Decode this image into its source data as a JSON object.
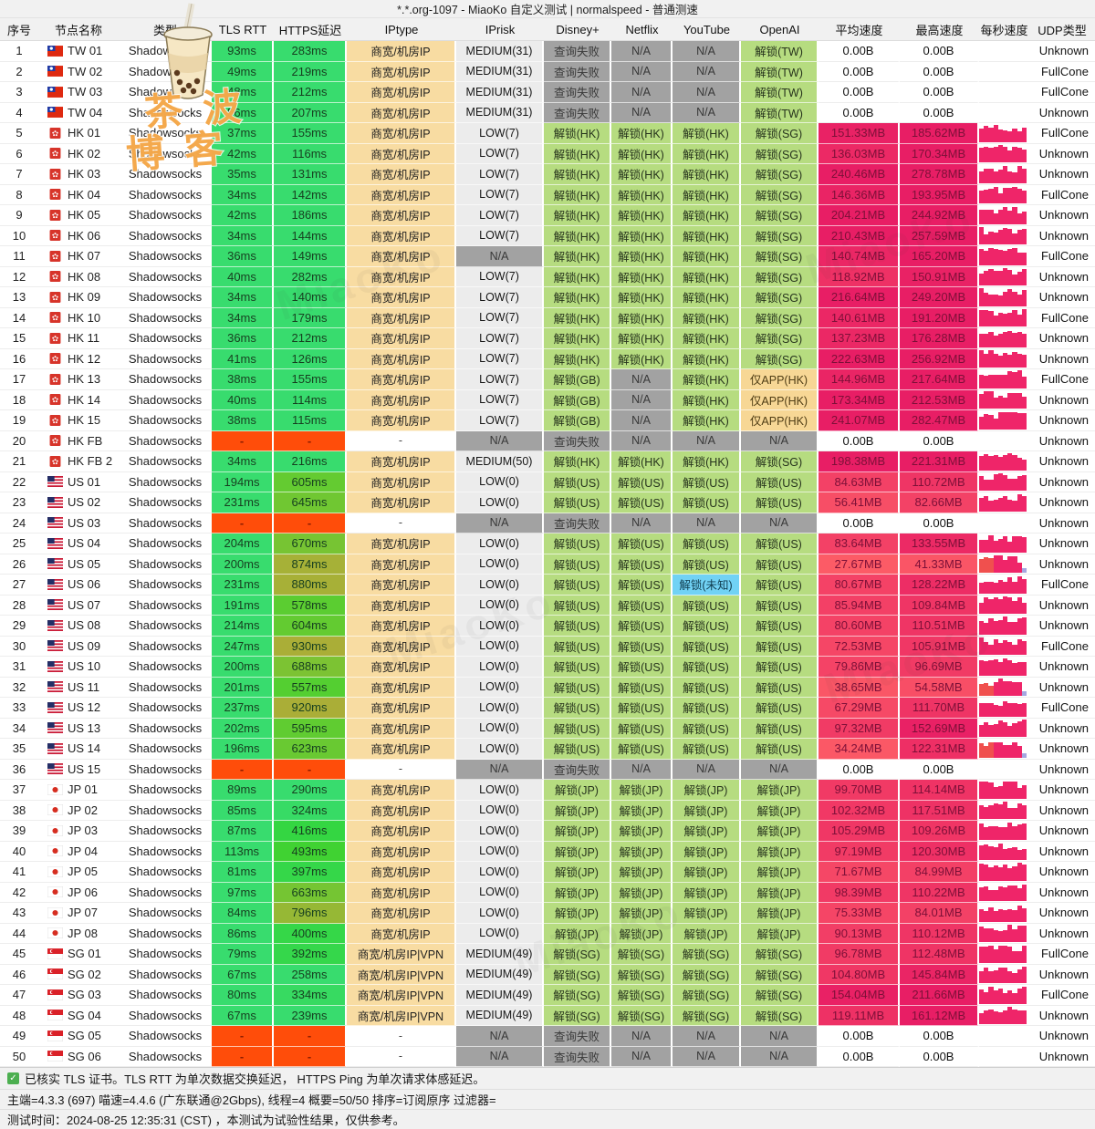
{
  "title": "*.*.org-1097 - MiaoKo 自定义测试 | normalspeed - 普通测速",
  "columns": [
    "序号",
    "节点名称",
    "类型",
    "TLS RTT",
    "HTTPS延迟",
    "IPtype",
    "IPrisk",
    "Disney+",
    "Netflix",
    "YouTube",
    "OpenAI",
    "平均速度",
    "最高速度",
    "每秒速度",
    "UDP类型"
  ],
  "row_fields": [
    "idx",
    "flag",
    "name",
    "type",
    "tls",
    "https",
    "iptype",
    "iprisk",
    "disney",
    "netflix",
    "youtube",
    "openai",
    "avg",
    "max",
    "udp"
  ],
  "rows": [
    [
      1,
      "tw",
      "TW 01",
      "Shadowsocks",
      "93ms",
      "283ms",
      "商宽/机房IP",
      "MEDIUM(31)",
      "查询失败",
      "N/A",
      "N/A",
      "解锁(TW)",
      "0.00B",
      "0.00B",
      "Unknown"
    ],
    [
      2,
      "tw",
      "TW 02",
      "Shadowsocks",
      "49ms",
      "219ms",
      "商宽/机房IP",
      "MEDIUM(31)",
      "查询失败",
      "N/A",
      "N/A",
      "解锁(TW)",
      "0.00B",
      "0.00B",
      "FullCone"
    ],
    [
      3,
      "tw",
      "TW 03",
      "Shadowsocks",
      "48ms",
      "212ms",
      "商宽/机房IP",
      "MEDIUM(31)",
      "查询失败",
      "N/A",
      "N/A",
      "解锁(TW)",
      "0.00B",
      "0.00B",
      "FullCone"
    ],
    [
      4,
      "tw",
      "TW 04",
      "Shadowsocks",
      "56ms",
      "207ms",
      "商宽/机房IP",
      "MEDIUM(31)",
      "查询失败",
      "N/A",
      "N/A",
      "解锁(TW)",
      "0.00B",
      "0.00B",
      "Unknown"
    ],
    [
      5,
      "hk",
      "HK 01",
      "Shadowsocks",
      "37ms",
      "155ms",
      "商宽/机房IP",
      "LOW(7)",
      "解锁(HK)",
      "解锁(HK)",
      "解锁(HK)",
      "解锁(SG)",
      "151.33MB",
      "185.62MB",
      "FullCone"
    ],
    [
      6,
      "hk",
      "HK 02",
      "Shadowsocks",
      "42ms",
      "116ms",
      "商宽/机房IP",
      "LOW(7)",
      "解锁(HK)",
      "解锁(HK)",
      "解锁(HK)",
      "解锁(SG)",
      "136.03MB",
      "170.34MB",
      "Unknown"
    ],
    [
      7,
      "hk",
      "HK 03",
      "Shadowsocks",
      "35ms",
      "131ms",
      "商宽/机房IP",
      "LOW(7)",
      "解锁(HK)",
      "解锁(HK)",
      "解锁(HK)",
      "解锁(SG)",
      "240.46MB",
      "278.78MB",
      "Unknown"
    ],
    [
      8,
      "hk",
      "HK 04",
      "Shadowsocks",
      "34ms",
      "142ms",
      "商宽/机房IP",
      "LOW(7)",
      "解锁(HK)",
      "解锁(HK)",
      "解锁(HK)",
      "解锁(SG)",
      "146.36MB",
      "193.95MB",
      "FullCone"
    ],
    [
      9,
      "hk",
      "HK 05",
      "Shadowsocks",
      "42ms",
      "186ms",
      "商宽/机房IP",
      "LOW(7)",
      "解锁(HK)",
      "解锁(HK)",
      "解锁(HK)",
      "解锁(SG)",
      "204.21MB",
      "244.92MB",
      "Unknown"
    ],
    [
      10,
      "hk",
      "HK 06",
      "Shadowsocks",
      "34ms",
      "144ms",
      "商宽/机房IP",
      "LOW(7)",
      "解锁(HK)",
      "解锁(HK)",
      "解锁(HK)",
      "解锁(SG)",
      "210.43MB",
      "257.59MB",
      "Unknown"
    ],
    [
      11,
      "hk",
      "HK 07",
      "Shadowsocks",
      "36ms",
      "149ms",
      "商宽/机房IP",
      "N/A",
      "解锁(HK)",
      "解锁(HK)",
      "解锁(HK)",
      "解锁(SG)",
      "140.74MB",
      "165.20MB",
      "FullCone"
    ],
    [
      12,
      "hk",
      "HK 08",
      "Shadowsocks",
      "40ms",
      "282ms",
      "商宽/机房IP",
      "LOW(7)",
      "解锁(HK)",
      "解锁(HK)",
      "解锁(HK)",
      "解锁(SG)",
      "118.92MB",
      "150.91MB",
      "Unknown"
    ],
    [
      13,
      "hk",
      "HK 09",
      "Shadowsocks",
      "34ms",
      "140ms",
      "商宽/机房IP",
      "LOW(7)",
      "解锁(HK)",
      "解锁(HK)",
      "解锁(HK)",
      "解锁(SG)",
      "216.64MB",
      "249.20MB",
      "Unknown"
    ],
    [
      14,
      "hk",
      "HK 10",
      "Shadowsocks",
      "34ms",
      "179ms",
      "商宽/机房IP",
      "LOW(7)",
      "解锁(HK)",
      "解锁(HK)",
      "解锁(HK)",
      "解锁(SG)",
      "140.61MB",
      "191.20MB",
      "FullCone"
    ],
    [
      15,
      "hk",
      "HK 11",
      "Shadowsocks",
      "36ms",
      "212ms",
      "商宽/机房IP",
      "LOW(7)",
      "解锁(HK)",
      "解锁(HK)",
      "解锁(HK)",
      "解锁(SG)",
      "137.23MB",
      "176.28MB",
      "Unknown"
    ],
    [
      16,
      "hk",
      "HK 12",
      "Shadowsocks",
      "41ms",
      "126ms",
      "商宽/机房IP",
      "LOW(7)",
      "解锁(HK)",
      "解锁(HK)",
      "解锁(HK)",
      "解锁(SG)",
      "222.63MB",
      "256.92MB",
      "Unknown"
    ],
    [
      17,
      "hk",
      "HK 13",
      "Shadowsocks",
      "38ms",
      "155ms",
      "商宽/机房IP",
      "LOW(7)",
      "解锁(GB)",
      "N/A",
      "解锁(HK)",
      "仅APP(HK)",
      "144.96MB",
      "217.64MB",
      "FullCone"
    ],
    [
      18,
      "hk",
      "HK 14",
      "Shadowsocks",
      "40ms",
      "114ms",
      "商宽/机房IP",
      "LOW(7)",
      "解锁(GB)",
      "N/A",
      "解锁(HK)",
      "仅APP(HK)",
      "173.34MB",
      "212.53MB",
      "Unknown"
    ],
    [
      19,
      "hk",
      "HK 15",
      "Shadowsocks",
      "38ms",
      "115ms",
      "商宽/机房IP",
      "LOW(7)",
      "解锁(GB)",
      "N/A",
      "解锁(HK)",
      "仅APP(HK)",
      "241.07MB",
      "282.47MB",
      "Unknown"
    ],
    [
      20,
      "hk",
      "HK FB",
      "Shadowsocks",
      "-",
      "-",
      "-",
      "N/A",
      "查询失败",
      "N/A",
      "N/A",
      "N/A",
      "0.00B",
      "0.00B",
      "Unknown"
    ],
    [
      21,
      "hk",
      "HK FB 2",
      "Shadowsocks",
      "34ms",
      "216ms",
      "商宽/机房IP",
      "MEDIUM(50)",
      "解锁(HK)",
      "解锁(HK)",
      "解锁(HK)",
      "解锁(SG)",
      "198.38MB",
      "221.31MB",
      "Unknown"
    ],
    [
      22,
      "us",
      "US 01",
      "Shadowsocks",
      "194ms",
      "605ms",
      "商宽/机房IP",
      "LOW(0)",
      "解锁(US)",
      "解锁(US)",
      "解锁(US)",
      "解锁(US)",
      "84.63MB",
      "110.72MB",
      "Unknown"
    ],
    [
      23,
      "us",
      "US 02",
      "Shadowsocks",
      "231ms",
      "645ms",
      "商宽/机房IP",
      "LOW(0)",
      "解锁(US)",
      "解锁(US)",
      "解锁(US)",
      "解锁(US)",
      "56.41MB",
      "82.66MB",
      "Unknown"
    ],
    [
      24,
      "us",
      "US 03",
      "Shadowsocks",
      "-",
      "-",
      "-",
      "N/A",
      "查询失败",
      "N/A",
      "N/A",
      "N/A",
      "0.00B",
      "0.00B",
      "Unknown"
    ],
    [
      25,
      "us",
      "US 04",
      "Shadowsocks",
      "204ms",
      "670ms",
      "商宽/机房IP",
      "LOW(0)",
      "解锁(US)",
      "解锁(US)",
      "解锁(US)",
      "解锁(US)",
      "83.64MB",
      "133.55MB",
      "Unknown"
    ],
    [
      26,
      "us",
      "US 05",
      "Shadowsocks",
      "200ms",
      "874ms",
      "商宽/机房IP",
      "LOW(0)",
      "解锁(US)",
      "解锁(US)",
      "解锁(US)",
      "解锁(US)",
      "27.67MB",
      "41.33MB",
      "Unknown"
    ],
    [
      27,
      "us",
      "US 06",
      "Shadowsocks",
      "231ms",
      "880ms",
      "商宽/机房IP",
      "LOW(0)",
      "解锁(US)",
      "解锁(US)",
      "解锁(未知)",
      "解锁(US)",
      "80.67MB",
      "128.22MB",
      "FullCone"
    ],
    [
      28,
      "us",
      "US 07",
      "Shadowsocks",
      "191ms",
      "578ms",
      "商宽/机房IP",
      "LOW(0)",
      "解锁(US)",
      "解锁(US)",
      "解锁(US)",
      "解锁(US)",
      "85.94MB",
      "109.84MB",
      "Unknown"
    ],
    [
      29,
      "us",
      "US 08",
      "Shadowsocks",
      "214ms",
      "604ms",
      "商宽/机房IP",
      "LOW(0)",
      "解锁(US)",
      "解锁(US)",
      "解锁(US)",
      "解锁(US)",
      "80.60MB",
      "110.51MB",
      "Unknown"
    ],
    [
      30,
      "us",
      "US 09",
      "Shadowsocks",
      "247ms",
      "930ms",
      "商宽/机房IP",
      "LOW(0)",
      "解锁(US)",
      "解锁(US)",
      "解锁(US)",
      "解锁(US)",
      "72.53MB",
      "105.91MB",
      "FullCone"
    ],
    [
      31,
      "us",
      "US 10",
      "Shadowsocks",
      "200ms",
      "688ms",
      "商宽/机房IP",
      "LOW(0)",
      "解锁(US)",
      "解锁(US)",
      "解锁(US)",
      "解锁(US)",
      "79.86MB",
      "96.69MB",
      "Unknown"
    ],
    [
      32,
      "us",
      "US 11",
      "Shadowsocks",
      "201ms",
      "557ms",
      "商宽/机房IP",
      "LOW(0)",
      "解锁(US)",
      "解锁(US)",
      "解锁(US)",
      "解锁(US)",
      "38.65MB",
      "54.58MB",
      "Unknown"
    ],
    [
      33,
      "us",
      "US 12",
      "Shadowsocks",
      "237ms",
      "920ms",
      "商宽/机房IP",
      "LOW(0)",
      "解锁(US)",
      "解锁(US)",
      "解锁(US)",
      "解锁(US)",
      "67.29MB",
      "111.70MB",
      "FullCone"
    ],
    [
      34,
      "us",
      "US 13",
      "Shadowsocks",
      "202ms",
      "595ms",
      "商宽/机房IP",
      "LOW(0)",
      "解锁(US)",
      "解锁(US)",
      "解锁(US)",
      "解锁(US)",
      "97.32MB",
      "152.69MB",
      "Unknown"
    ],
    [
      35,
      "us",
      "US 14",
      "Shadowsocks",
      "196ms",
      "623ms",
      "商宽/机房IP",
      "LOW(0)",
      "解锁(US)",
      "解锁(US)",
      "解锁(US)",
      "解锁(US)",
      "34.24MB",
      "122.31MB",
      "Unknown"
    ],
    [
      36,
      "us",
      "US 15",
      "Shadowsocks",
      "-",
      "-",
      "-",
      "N/A",
      "查询失败",
      "N/A",
      "N/A",
      "N/A",
      "0.00B",
      "0.00B",
      "Unknown"
    ],
    [
      37,
      "jp",
      "JP 01",
      "Shadowsocks",
      "89ms",
      "290ms",
      "商宽/机房IP",
      "LOW(0)",
      "解锁(JP)",
      "解锁(JP)",
      "解锁(JP)",
      "解锁(JP)",
      "99.70MB",
      "114.14MB",
      "Unknown"
    ],
    [
      38,
      "jp",
      "JP 02",
      "Shadowsocks",
      "85ms",
      "324ms",
      "商宽/机房IP",
      "LOW(0)",
      "解锁(JP)",
      "解锁(JP)",
      "解锁(JP)",
      "解锁(JP)",
      "102.32MB",
      "117.51MB",
      "Unknown"
    ],
    [
      39,
      "jp",
      "JP 03",
      "Shadowsocks",
      "87ms",
      "416ms",
      "商宽/机房IP",
      "LOW(0)",
      "解锁(JP)",
      "解锁(JP)",
      "解锁(JP)",
      "解锁(JP)",
      "105.29MB",
      "109.26MB",
      "Unknown"
    ],
    [
      40,
      "jp",
      "JP 04",
      "Shadowsocks",
      "113ms",
      "493ms",
      "商宽/机房IP",
      "LOW(0)",
      "解锁(JP)",
      "解锁(JP)",
      "解锁(JP)",
      "解锁(JP)",
      "97.19MB",
      "120.30MB",
      "Unknown"
    ],
    [
      41,
      "jp",
      "JP 05",
      "Shadowsocks",
      "81ms",
      "397ms",
      "商宽/机房IP",
      "LOW(0)",
      "解锁(JP)",
      "解锁(JP)",
      "解锁(JP)",
      "解锁(JP)",
      "71.67MB",
      "84.99MB",
      "Unknown"
    ],
    [
      42,
      "jp",
      "JP 06",
      "Shadowsocks",
      "97ms",
      "663ms",
      "商宽/机房IP",
      "LOW(0)",
      "解锁(JP)",
      "解锁(JP)",
      "解锁(JP)",
      "解锁(JP)",
      "98.39MB",
      "110.22MB",
      "Unknown"
    ],
    [
      43,
      "jp",
      "JP 07",
      "Shadowsocks",
      "84ms",
      "796ms",
      "商宽/机房IP",
      "LOW(0)",
      "解锁(JP)",
      "解锁(JP)",
      "解锁(JP)",
      "解锁(JP)",
      "75.33MB",
      "84.01MB",
      "Unknown"
    ],
    [
      44,
      "jp",
      "JP 08",
      "Shadowsocks",
      "86ms",
      "400ms",
      "商宽/机房IP",
      "LOW(0)",
      "解锁(JP)",
      "解锁(JP)",
      "解锁(JP)",
      "解锁(JP)",
      "90.13MB",
      "110.12MB",
      "Unknown"
    ],
    [
      45,
      "sg",
      "SG 01",
      "Shadowsocks",
      "79ms",
      "392ms",
      "商宽/机房IP|VPN",
      "MEDIUM(49)",
      "解锁(SG)",
      "解锁(SG)",
      "解锁(SG)",
      "解锁(SG)",
      "96.78MB",
      "112.48MB",
      "FullCone"
    ],
    [
      46,
      "sg",
      "SG 02",
      "Shadowsocks",
      "67ms",
      "258ms",
      "商宽/机房IP|VPN",
      "MEDIUM(49)",
      "解锁(SG)",
      "解锁(SG)",
      "解锁(SG)",
      "解锁(SG)",
      "104.80MB",
      "145.84MB",
      "Unknown"
    ],
    [
      47,
      "sg",
      "SG 03",
      "Shadowsocks",
      "80ms",
      "334ms",
      "商宽/机房IP|VPN",
      "MEDIUM(49)",
      "解锁(SG)",
      "解锁(SG)",
      "解锁(SG)",
      "解锁(SG)",
      "154.04MB",
      "211.66MB",
      "FullCone"
    ],
    [
      48,
      "sg",
      "SG 04",
      "Shadowsocks",
      "67ms",
      "239ms",
      "商宽/机房IP|VPN",
      "MEDIUM(49)",
      "解锁(SG)",
      "解锁(SG)",
      "解锁(SG)",
      "解锁(SG)",
      "119.11MB",
      "161.12MB",
      "Unknown"
    ],
    [
      49,
      "sg",
      "SG 05",
      "Shadowsocks",
      "-",
      "-",
      "-",
      "N/A",
      "查询失败",
      "N/A",
      "N/A",
      "N/A",
      "0.00B",
      "0.00B",
      "Unknown"
    ],
    [
      50,
      "sg",
      "SG 06",
      "Shadowsocks",
      "-",
      "-",
      "-",
      "N/A",
      "查询失败",
      "N/A",
      "N/A",
      "N/A",
      "0.00B",
      "0.00B",
      "Unknown"
    ]
  ],
  "footer": {
    "line1": "已核实 TLS 证书。TLS RTT 为单次数据交换延迟， HTTPS Ping 为单次请求体感延迟。",
    "line2": "主端=4.3.3 (697) 喵速=4.4.6 (广东联通@2Gbps), 线程=4 概要=50/50 排序=订阅原序 过滤器=",
    "line3": "测试时间：2024-08-25 12:35:31 (CST) ，本测试为试验性结果，仅供参考。"
  },
  "watermark": {
    "brand_line1": "茶波",
    "brand_line2": "博客",
    "ghost_text": "MiaoKo"
  },
  "colors": {
    "unlock_green": "#b6dc80",
    "apponly_orange": "#f7d795",
    "unknown_cyan": "#71d2f5",
    "na_gray": "#a2a2a2",
    "fail_red": "#ff4d0a",
    "iptype_orange": "#f8dca2",
    "iprisk_gray": "#ececec",
    "speed_low": "#fc5c66",
    "speed_high": "#e81e65",
    "spark_pink": "#ef2569",
    "spark_red": "#f0504e",
    "spark_lavender": "#a5a6e0",
    "latency_green": "#35dd74",
    "latency_olive": "#a8a437",
    "header_bg": "#f1f1f1",
    "check_green": "#4caf50"
  }
}
